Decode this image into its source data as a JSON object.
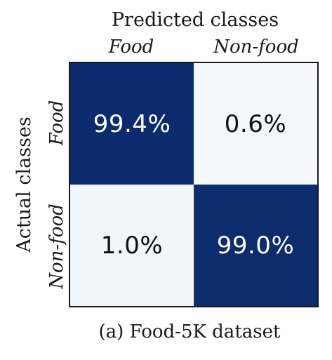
{
  "chart_data": {
    "type": "heatmap",
    "title": "Predicted classes",
    "xlabel": "Predicted classes",
    "ylabel": "Actual classes",
    "x_categories": [
      "Food",
      "Non-food"
    ],
    "y_categories": [
      "Food",
      "Non-food"
    ],
    "values": [
      [
        99.4,
        0.6
      ],
      [
        1.0,
        99.0
      ]
    ],
    "labels": [
      [
        "99.4%",
        "0.6%"
      ],
      [
        "1.0%",
        "99.0%"
      ]
    ],
    "colormap": {
      "low": "#f4f7fc",
      "high": "#0b2a6d"
    },
    "text_colors": {
      "on_dark": "#ffffff",
      "on_light": "#111111"
    },
    "caption": "(a) Food-5K dataset"
  }
}
